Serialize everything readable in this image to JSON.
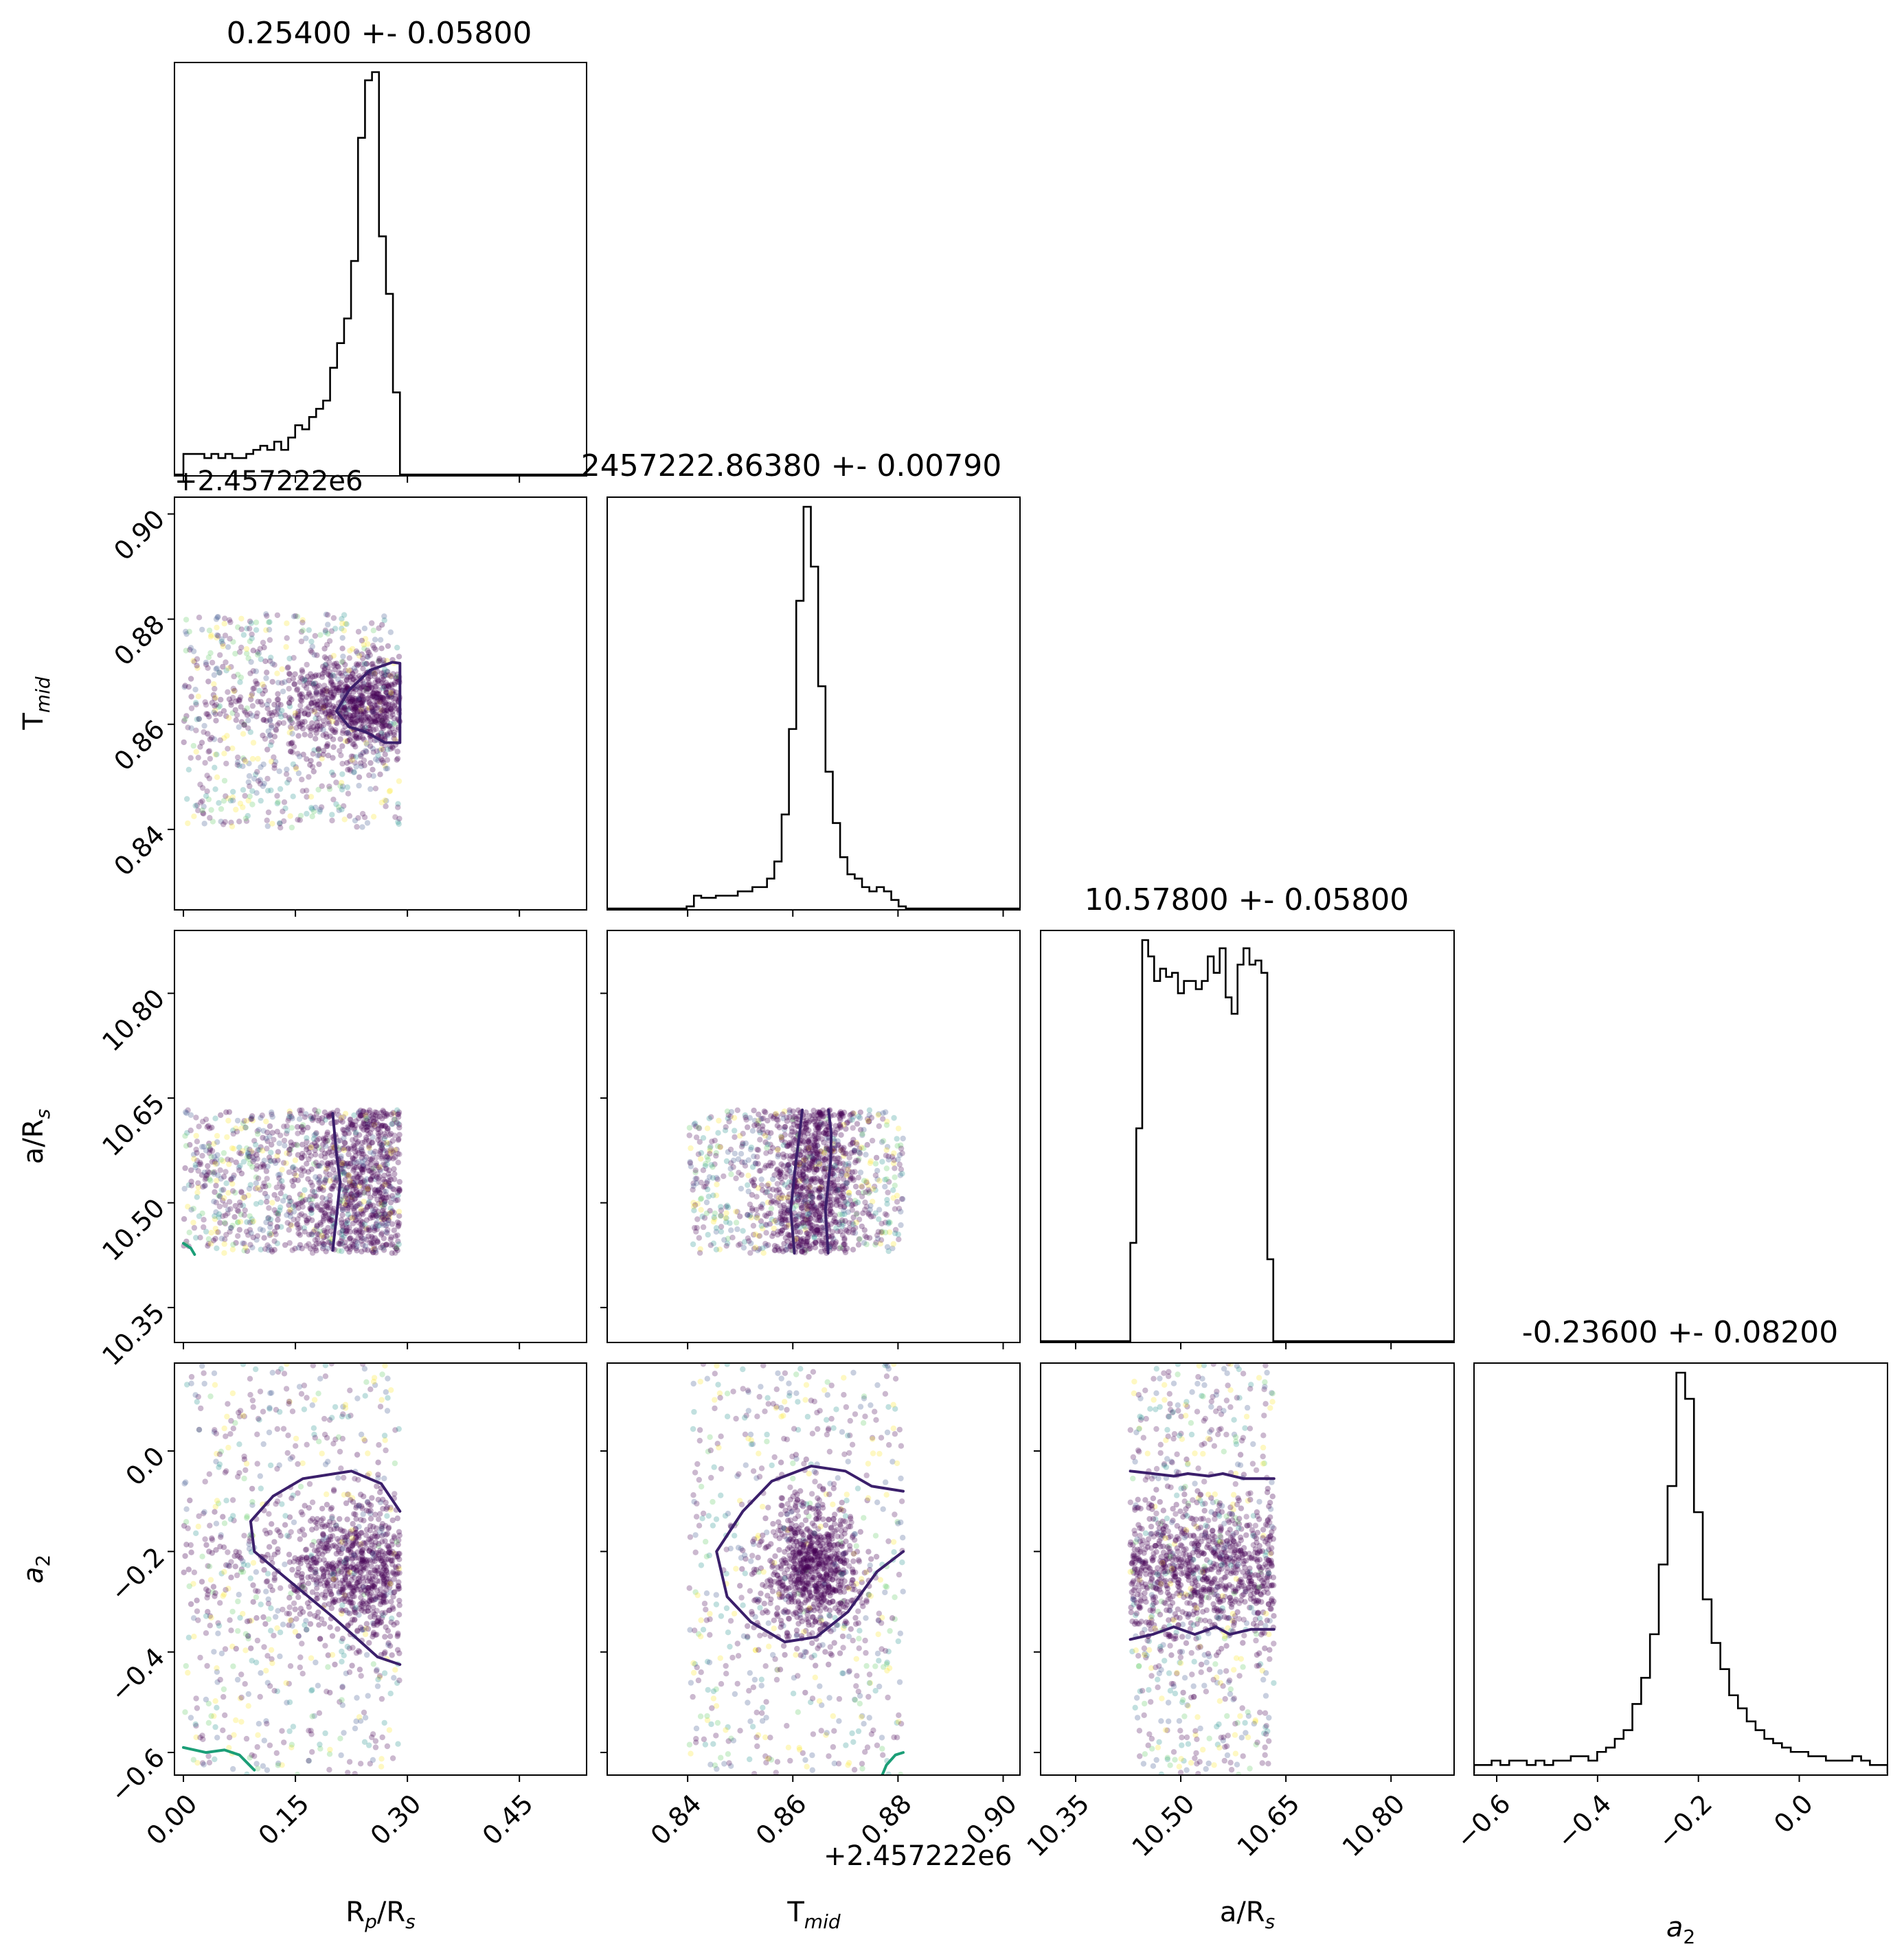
{
  "chart_data": {
    "type": "corner",
    "parameters": [
      {
        "id": "rp",
        "axis_label": "R_p/R_s",
        "lim": [
          -0.012,
          0.54
        ],
        "ticks": [
          0.0,
          0.15,
          0.3,
          0.45
        ],
        "tick_labels": [
          "0.00",
          "0.15",
          "0.30",
          "0.45"
        ]
      },
      {
        "id": "tmid",
        "axis_label": "T_mid",
        "lim": [
          0.8247,
          0.9032
        ],
        "ticks": [
          0.84,
          0.86,
          0.88,
          0.9
        ],
        "tick_labels": [
          "0.84",
          "0.86",
          "0.88",
          "0.90"
        ],
        "offset_text": "+2.457222e6"
      },
      {
        "id": "ars",
        "axis_label": "a/R_s",
        "lim": [
          10.3,
          10.89
        ],
        "ticks": [
          10.35,
          10.5,
          10.65,
          10.8
        ],
        "tick_labels": [
          "10.35",
          "10.50",
          "10.65",
          "10.80"
        ]
      },
      {
        "id": "a2",
        "axis_label": "a_2",
        "lim": [
          -0.645,
          0.175
        ],
        "ticks": [
          -0.6,
          -0.4,
          -0.2,
          0.0
        ],
        "tick_labels": [
          "−0.6",
          "−0.4",
          "−0.2",
          "0.0"
        ]
      }
    ],
    "labels": {
      "rp": {
        "main": "R",
        "sub": "p",
        "tail": "/R",
        "sub2": "s"
      },
      "tmid": {
        "main": "T",
        "sub": "mid"
      },
      "ars": {
        "main": "a/R",
        "sub": "s"
      },
      "a2": {
        "main": "a",
        "sub": "2"
      }
    },
    "titles": [
      "0.25400 +- 0.05800",
      "2457222.86380 +- 0.00790",
      "10.57800 +- 0.05800",
      "-0.23600 +- 0.08200"
    ],
    "offset_text": "+2.457222e6",
    "histograms": [
      {
        "param": "rp",
        "edges_range": [
          0.0,
          0.29
        ],
        "counts": [
          5,
          5,
          5,
          4,
          5,
          4,
          5,
          4,
          4,
          5,
          6,
          7,
          6,
          8,
          6,
          9,
          12,
          11,
          14,
          16,
          18,
          26,
          32,
          38,
          52,
          82,
          96,
          98,
          58,
          44,
          20
        ]
      },
      {
        "param": "tmid",
        "edges_range": [
          0.8398,
          0.8815
        ],
        "counts": [
          0.5,
          3,
          2.5,
          2.5,
          3,
          3,
          3,
          4,
          4,
          5,
          5,
          7,
          11,
          22,
          42,
          72,
          94,
          80,
          52,
          32,
          20,
          12,
          8,
          7,
          5,
          4,
          5,
          4,
          2,
          0.5
        ]
      },
      {
        "param": "ars",
        "edges_range": [
          10.428,
          10.632
        ],
        "counts": [
          24,
          52,
          98,
          94,
          88,
          91,
          89,
          90,
          85,
          88,
          88,
          86,
          88,
          94,
          90,
          96,
          84,
          80,
          92,
          96,
          92,
          93,
          90,
          20
        ]
      },
      {
        "param": "a2",
        "edges_range": [
          -0.645,
          0.175
        ],
        "counts": [
          2,
          2,
          3,
          2,
          3,
          3,
          2,
          3,
          2,
          3,
          3,
          4,
          4,
          3,
          5,
          6,
          8,
          10,
          16,
          22,
          32,
          48,
          66,
          92,
          86,
          60,
          40,
          30,
          24,
          18,
          15,
          12,
          10,
          8,
          7,
          6,
          5,
          5,
          4,
          4,
          3,
          3,
          3,
          4,
          3,
          2,
          2
        ]
      }
    ],
    "scatter_panels": [
      {
        "x": "rp",
        "y": "tmid"
      },
      {
        "x": "rp",
        "y": "ars"
      },
      {
        "x": "tmid",
        "y": "ars"
      },
      {
        "x": "rp",
        "y": "a2"
      },
      {
        "x": "tmid",
        "y": "a2"
      },
      {
        "x": "ars",
        "y": "a2"
      }
    ],
    "sample_ranges": {
      "rp": [
        0.0,
        0.29
      ],
      "tmid": [
        0.8403,
        0.881
      ],
      "ars": [
        10.428,
        10.633
      ],
      "a2": [
        -0.645,
        0.175
      ]
    },
    "sample_cores": {
      "rp": {
        "center": 0.245,
        "width": 0.05
      },
      "tmid": {
        "center": 0.8638,
        "width": 0.0045
      },
      "a2": {
        "center": -0.236,
        "width": 0.07
      }
    },
    "contours": [
      {
        "x": "rp",
        "y": "tmid",
        "color": "#3b1f6b",
        "points": [
          [
            0.205,
            0.8625
          ],
          [
            0.222,
            0.8665
          ],
          [
            0.25,
            0.8703
          ],
          [
            0.28,
            0.8718
          ],
          [
            0.29,
            0.8716
          ],
          [
            0.29,
            0.8565
          ],
          [
            0.27,
            0.8565
          ],
          [
            0.245,
            0.8585
          ],
          [
            0.222,
            0.8595
          ],
          [
            0.205,
            0.8625
          ]
        ]
      },
      {
        "x": "rp",
        "y": "ars",
        "color": "#3b1f6b",
        "points": [
          [
            0.2,
            10.628
          ],
          [
            0.205,
            10.57
          ],
          [
            0.21,
            10.53
          ],
          [
            0.205,
            10.48
          ],
          [
            0.2,
            10.432
          ]
        ]
      },
      {
        "x": "rp",
        "y": "ars",
        "color": "#1b9e77",
        "points": [
          [
            0.0,
            10.442
          ],
          [
            0.01,
            10.435
          ],
          [
            0.015,
            10.426
          ]
        ]
      },
      {
        "x": "tmid",
        "y": "ars",
        "color": "#3b1f6b",
        "points": [
          [
            0.8603,
            10.428
          ],
          [
            0.8596,
            10.49
          ],
          [
            0.8606,
            10.56
          ],
          [
            0.8613,
            10.6
          ],
          [
            0.8618,
            10.633
          ]
        ]
      },
      {
        "x": "tmid",
        "y": "ars",
        "color": "#3b1f6b",
        "points": [
          [
            0.8667,
            10.428
          ],
          [
            0.8662,
            10.49
          ],
          [
            0.8672,
            10.56
          ],
          [
            0.8673,
            10.6
          ],
          [
            0.8668,
            10.633
          ]
        ]
      },
      {
        "x": "rp",
        "y": "a2",
        "color": "#3b1f6b",
        "points": [
          [
            0.29,
            -0.12
          ],
          [
            0.265,
            -0.065
          ],
          [
            0.225,
            -0.04
          ],
          [
            0.16,
            -0.055
          ],
          [
            0.12,
            -0.09
          ],
          [
            0.09,
            -0.14
          ],
          [
            0.095,
            -0.2
          ],
          [
            0.135,
            -0.25
          ],
          [
            0.2,
            -0.33
          ],
          [
            0.26,
            -0.41
          ],
          [
            0.29,
            -0.425
          ]
        ]
      },
      {
        "x": "rp",
        "y": "a2",
        "color": "#1b9e77",
        "points": [
          [
            0.0,
            -0.59
          ],
          [
            0.03,
            -0.6
          ],
          [
            0.055,
            -0.595
          ],
          [
            0.075,
            -0.605
          ],
          [
            0.095,
            -0.635
          ]
        ]
      },
      {
        "x": "tmid",
        "y": "a2",
        "color": "#3b1f6b",
        "points": [
          [
            0.881,
            -0.08
          ],
          [
            0.875,
            -0.07
          ],
          [
            0.87,
            -0.04
          ],
          [
            0.8635,
            -0.03
          ],
          [
            0.856,
            -0.06
          ],
          [
            0.8505,
            -0.12
          ],
          [
            0.8455,
            -0.2
          ],
          [
            0.8475,
            -0.29
          ],
          [
            0.852,
            -0.34
          ],
          [
            0.8585,
            -0.38
          ],
          [
            0.8645,
            -0.37
          ],
          [
            0.8705,
            -0.32
          ],
          [
            0.876,
            -0.24
          ],
          [
            0.881,
            -0.2
          ]
        ]
      },
      {
        "x": "tmid",
        "y": "a2",
        "color": "#1b9e77",
        "points": [
          [
            0.877,
            -0.645
          ],
          [
            0.8778,
            -0.625
          ],
          [
            0.8795,
            -0.605
          ],
          [
            0.881,
            -0.6
          ]
        ]
      },
      {
        "x": "ars",
        "y": "a2",
        "color": "#3b1f6b",
        "points": [
          [
            10.428,
            -0.04
          ],
          [
            10.46,
            -0.045
          ],
          [
            10.49,
            -0.05
          ],
          [
            10.51,
            -0.045
          ],
          [
            10.54,
            -0.05
          ],
          [
            10.56,
            -0.045
          ],
          [
            10.59,
            -0.055
          ],
          [
            10.633,
            -0.055
          ]
        ]
      },
      {
        "x": "ars",
        "y": "a2",
        "color": "#3b1f6b",
        "points": [
          [
            10.428,
            -0.375
          ],
          [
            10.46,
            -0.365
          ],
          [
            10.49,
            -0.35
          ],
          [
            10.52,
            -0.365
          ],
          [
            10.55,
            -0.35
          ],
          [
            10.57,
            -0.365
          ],
          [
            10.6,
            -0.355
          ],
          [
            10.633,
            -0.355
          ]
        ]
      }
    ],
    "colormap": [
      "#440154",
      "#3b528b",
      "#21918c",
      "#5ec962",
      "#fde725"
    ],
    "grid": false,
    "legend": "none"
  }
}
